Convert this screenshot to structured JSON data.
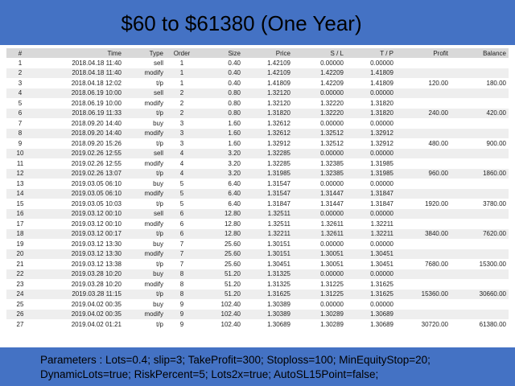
{
  "header": {
    "title": "$60 to $61380 (One Year)"
  },
  "table": {
    "columns": [
      "#",
      "Time",
      "Type",
      "Order",
      "Size",
      "Price",
      "S / L",
      "T / P",
      "Profit",
      "Balance"
    ],
    "rows": [
      [
        "1",
        "2018.04.18 11:40",
        "sell",
        "1",
        "0.40",
        "1.42109",
        "0.00000",
        "0.00000"
      ],
      [
        "2",
        "2018.04.18 11:40",
        "modify",
        "1",
        "0.40",
        "1.42109",
        "1.42209",
        "1.41809"
      ],
      [
        "3",
        "2018.04.18 12:02",
        "t/p",
        "1",
        "0.40",
        "1.41809",
        "1.42209",
        "1.41809",
        "120.00",
        "180.00"
      ],
      [
        "4",
        "2018.06.19 10:00",
        "sell",
        "2",
        "0.80",
        "1.32120",
        "0.00000",
        "0.00000"
      ],
      [
        "5",
        "2018.06.19 10:00",
        "modify",
        "2",
        "0.80",
        "1.32120",
        "1.32220",
        "1.31820"
      ],
      [
        "6",
        "2018.06.19 11:33",
        "t/p",
        "2",
        "0.80",
        "1.31820",
        "1.32220",
        "1.31820",
        "240.00",
        "420.00"
      ],
      [
        "7",
        "2018.09.20 14:40",
        "buy",
        "3",
        "1.60",
        "1.32612",
        "0.00000",
        "0.00000"
      ],
      [
        "8",
        "2018.09.20 14:40",
        "modify",
        "3",
        "1.60",
        "1.32612",
        "1.32512",
        "1.32912"
      ],
      [
        "9",
        "2018.09.20 15:26",
        "t/p",
        "3",
        "1.60",
        "1.32912",
        "1.32512",
        "1.32912",
        "480.00",
        "900.00"
      ],
      [
        "10",
        "2019.02.26 12:55",
        "sell",
        "4",
        "3.20",
        "1.32285",
        "0.00000",
        "0.00000"
      ],
      [
        "11",
        "2019.02.26 12:55",
        "modify",
        "4",
        "3.20",
        "1.32285",
        "1.32385",
        "1.31985"
      ],
      [
        "12",
        "2019.02.26 13:07",
        "t/p",
        "4",
        "3.20",
        "1.31985",
        "1.32385",
        "1.31985",
        "960.00",
        "1860.00"
      ],
      [
        "13",
        "2019.03.05 06:10",
        "buy",
        "5",
        "6.40",
        "1.31547",
        "0.00000",
        "0.00000"
      ],
      [
        "14",
        "2019.03.05 06:10",
        "modify",
        "5",
        "6.40",
        "1.31547",
        "1.31447",
        "1.31847"
      ],
      [
        "15",
        "2019.03.05 10:03",
        "t/p",
        "5",
        "6.40",
        "1.31847",
        "1.31447",
        "1.31847",
        "1920.00",
        "3780.00"
      ],
      [
        "16",
        "2019.03.12 00:10",
        "sell",
        "6",
        "12.80",
        "1.32511",
        "0.00000",
        "0.00000"
      ],
      [
        "17",
        "2019.03.12 00:10",
        "modify",
        "6",
        "12.80",
        "1.32511",
        "1.32611",
        "1.32211"
      ],
      [
        "18",
        "2019.03.12 00:17",
        "t/p",
        "6",
        "12.80",
        "1.32211",
        "1.32611",
        "1.32211",
        "3840.00",
        "7620.00"
      ],
      [
        "19",
        "2019.03.12 13:30",
        "buy",
        "7",
        "25.60",
        "1.30151",
        "0.00000",
        "0.00000"
      ],
      [
        "20",
        "2019.03.12 13:30",
        "modify",
        "7",
        "25.60",
        "1.30151",
        "1.30051",
        "1.30451"
      ],
      [
        "21",
        "2019.03.12 13:38",
        "t/p",
        "7",
        "25.60",
        "1.30451",
        "1.30051",
        "1.30451",
        "7680.00",
        "15300.00"
      ],
      [
        "22",
        "2019.03.28 10:20",
        "buy",
        "8",
        "51.20",
        "1.31325",
        "0.00000",
        "0.00000"
      ],
      [
        "23",
        "2019.03.28 10:20",
        "modify",
        "8",
        "51.20",
        "1.31325",
        "1.31225",
        "1.31625"
      ],
      [
        "24",
        "2019.03.28 11:15",
        "t/p",
        "8",
        "51.20",
        "1.31625",
        "1.31225",
        "1.31625",
        "15360.00",
        "30660.00"
      ],
      [
        "25",
        "2019.04.02 00:35",
        "buy",
        "9",
        "102.40",
        "1.30389",
        "0.00000",
        "0.00000"
      ],
      [
        "26",
        "2019.04.02 00:35",
        "modify",
        "9",
        "102.40",
        "1.30389",
        "1.30289",
        "1.30689"
      ],
      [
        "27",
        "2019.04.02 01:21",
        "t/p",
        "9",
        "102.40",
        "1.30689",
        "1.30289",
        "1.30689",
        "30720.00",
        "61380.00"
      ]
    ]
  },
  "footer": {
    "lines": [
      "Parameters :  Lots=0.4; slip=3; TakeProfit=300; Stoploss=100; MinEquityStop=20;",
      "DynamicLots=true; RiskPercent=5; Lots2x=true; AutoSL15Point=false;"
    ]
  }
}
